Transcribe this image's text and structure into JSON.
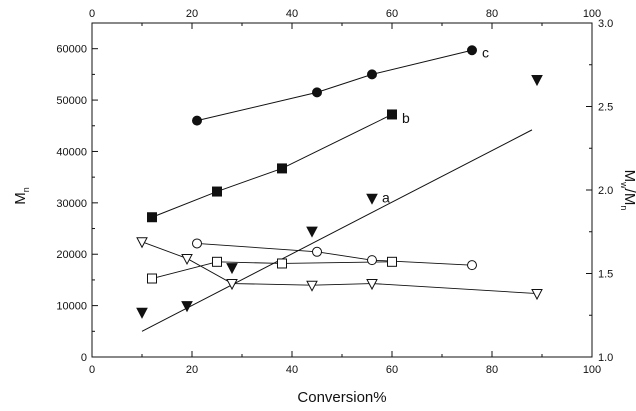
{
  "chart_data": {
    "type": "scatter",
    "xlabel": "Conversion%",
    "ylabel_left": {
      "main": "M",
      "sub": "n"
    },
    "ylabel_right": {
      "m1": "M",
      "s1": "w",
      "slash": "/",
      "m2": "M",
      "s2": "n"
    },
    "x_ticks": [
      "0",
      "20",
      "40",
      "60",
      "80",
      "100"
    ],
    "y_left_ticks": [
      "0",
      "10000",
      "20000",
      "30000",
      "40000",
      "50000",
      "60000"
    ],
    "y_right_ticks": [
      "1.0",
      "1.5",
      "2.0",
      "2.5",
      "3.0"
    ],
    "xlim": [
      0,
      100
    ],
    "ylim_left": [
      0,
      65000
    ],
    "ylim_right": [
      1.0,
      3.0
    ],
    "grid": false,
    "mn_series": [
      {
        "label": "c",
        "marker": "filled-circle",
        "x": [
          21,
          45,
          56,
          76
        ],
        "y": [
          46000,
          51500,
          55000,
          59700
        ],
        "label_at": [
          78,
          59300
        ]
      },
      {
        "label": "b",
        "marker": "filled-square",
        "x": [
          12,
          25,
          38,
          60
        ],
        "y": [
          27200,
          32200,
          36700,
          47200
        ],
        "label_at": [
          62,
          46500
        ]
      },
      {
        "label": "a",
        "marker": "filled-triangle-down",
        "x": [
          10,
          19,
          28,
          44,
          56,
          89
        ],
        "y": [
          8700,
          10000,
          17400,
          24500,
          30900,
          54000
        ],
        "fit": {
          "x": [
            10,
            88
          ],
          "y": [
            5000,
            44200
          ]
        },
        "label_at": [
          58,
          31000
        ]
      }
    ],
    "pdi_series": [
      {
        "marker": "open-circle",
        "x": [
          21,
          45,
          56,
          76
        ],
        "y": [
          1.68,
          1.63,
          1.58,
          1.55
        ]
      },
      {
        "marker": "open-square",
        "x": [
          12,
          25,
          38,
          60
        ],
        "y": [
          1.47,
          1.57,
          1.56,
          1.57
        ]
      },
      {
        "marker": "open-triangle-down",
        "x": [
          10,
          19,
          28,
          44,
          56,
          89
        ],
        "y": [
          1.69,
          1.59,
          1.44,
          1.43,
          1.44,
          1.38
        ]
      }
    ]
  }
}
